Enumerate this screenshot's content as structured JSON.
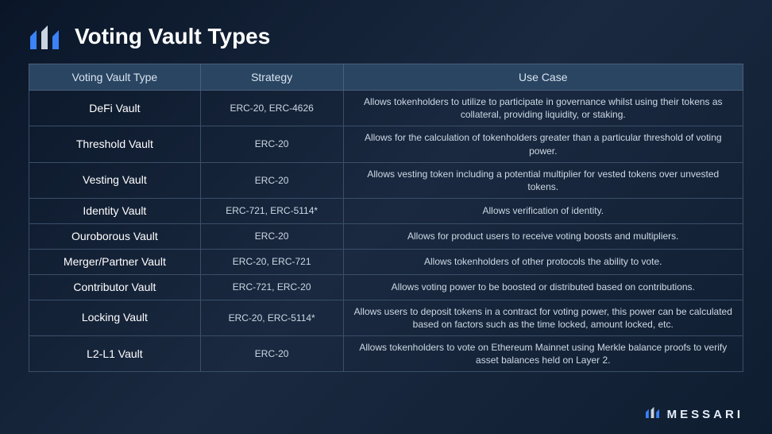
{
  "page": {
    "title": "Voting Vault Types",
    "background_gradient": [
      "#0a1628",
      "#1a2940",
      "#0f1d30"
    ],
    "text_color": "#ffffff"
  },
  "logo": {
    "primary_color": "#3b82f6",
    "secondary_color": "#cbd5e1"
  },
  "table": {
    "header_bg": "#2a4562",
    "border_color": "#4a5f7a",
    "row_border_color": "#3a4f68",
    "header_font_size": 14,
    "cell_font_size": 12,
    "vault_type_font_size": 14,
    "columns": [
      {
        "label": "Voting Vault Type",
        "width": "24%"
      },
      {
        "label": "Strategy",
        "width": "20%"
      },
      {
        "label": "Use Case",
        "width": "56%"
      }
    ],
    "rows": [
      {
        "type": "DeFi Vault",
        "strategy": "ERC-20, ERC-4626",
        "usecase": "Allows tokenholders to utilize to participate in governance whilst using their tokens as collateral, providing liquidity, or staking."
      },
      {
        "type": "Threshold Vault",
        "strategy": "ERC-20",
        "usecase": "Allows for the calculation of tokenholders greater than a particular threshold of voting power."
      },
      {
        "type": "Vesting Vault",
        "strategy": "ERC-20",
        "usecase": "Allows vesting token including a potential multiplier for vested tokens over unvested tokens."
      },
      {
        "type": "Identity Vault",
        "strategy": "ERC-721, ERC-5114*",
        "usecase": "Allows verification of identity."
      },
      {
        "type": "Ouroborous Vault",
        "strategy": "ERC-20",
        "usecase": "Allows for product users to receive voting boosts and multipliers."
      },
      {
        "type": "Merger/Partner Vault",
        "strategy": "ERC-20, ERC-721",
        "usecase": "Allows tokenholders of other protocols the ability to vote."
      },
      {
        "type": "Contributor Vault",
        "strategy": "ERC-721, ERC-20",
        "usecase": "Allows voting power to be boosted or distributed based on contributions."
      },
      {
        "type": "Locking Vault",
        "strategy": "ERC-20, ERC-5114*",
        "usecase": "Allows users to deposit tokens in a contract for voting power, this power can be calculated based on factors such as the time locked, amount locked, etc."
      },
      {
        "type": "L2-L1 Vault",
        "strategy": "ERC-20",
        "usecase": "Allows tokenholders to vote on Ethereum Mainnet using Merkle balance proofs to verify asset balances held on Layer 2."
      }
    ]
  },
  "footer": {
    "brand_text": "MESSARI",
    "letter_spacing": 4,
    "font_size": 15,
    "text_color": "#e5eef7"
  }
}
